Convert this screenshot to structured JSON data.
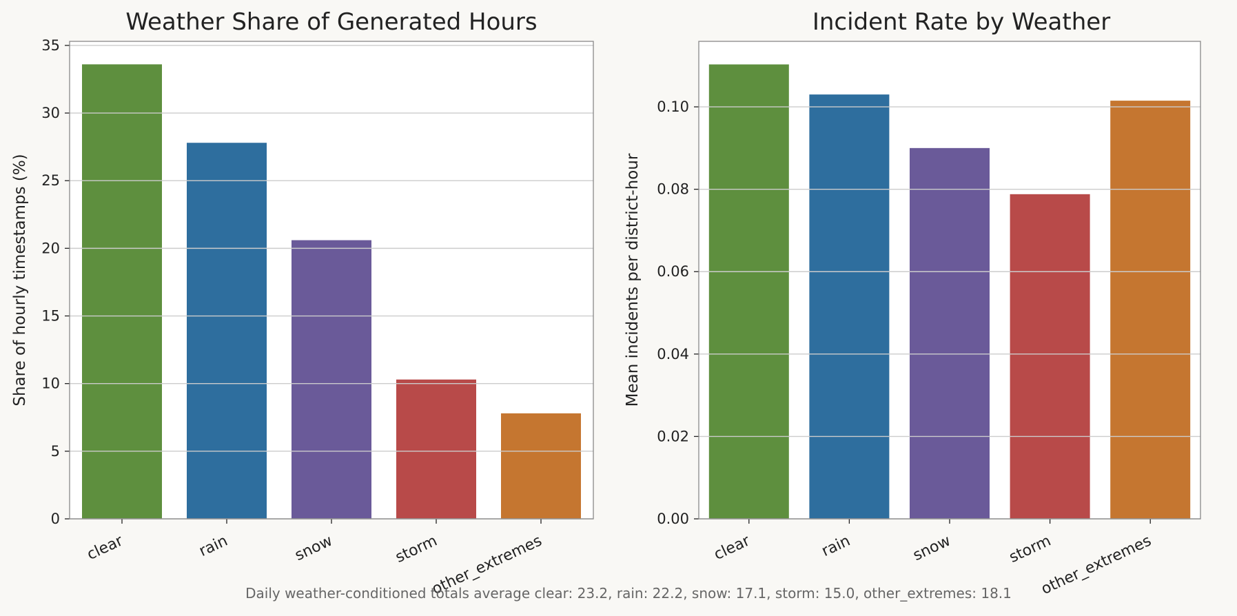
{
  "footnote": "Daily weather-conditioned totals average clear: 23.2, rain: 22.2, snow: 17.1, storm: 15.0, other_extremes: 18.1",
  "colors": {
    "clear": "#5e8f3e",
    "rain": "#2e6e9e",
    "snow": "#6a5a99",
    "storm": "#b84a49",
    "other_extremes": "#c57630",
    "grid": "#cccccc",
    "spine": "#888888",
    "text": "#222222",
    "footnote": "#666666",
    "background": "#f9f8f5",
    "plot_background": "#ffffff"
  },
  "chart_data": [
    {
      "type": "bar",
      "title": "Weather Share of Generated Hours",
      "xlabel": "",
      "ylabel": "Share of hourly timestamps (%)",
      "categories": [
        "clear",
        "rain",
        "snow",
        "storm",
        "other_extremes"
      ],
      "values": [
        33.6,
        27.8,
        20.6,
        10.3,
        7.8
      ],
      "ylim": [
        0,
        35.3
      ],
      "yticks": [
        0,
        5,
        10,
        15,
        20,
        25,
        30,
        35
      ],
      "ytick_labels": [
        "0",
        "5",
        "10",
        "15",
        "20",
        "25",
        "30",
        "35"
      ],
      "grid": true,
      "legend": "none"
    },
    {
      "type": "bar",
      "title": "Incident Rate by Weather",
      "xlabel": "",
      "ylabel": "Mean incidents per district-hour",
      "categories": [
        "clear",
        "rain",
        "snow",
        "storm",
        "other_extremes"
      ],
      "values": [
        0.1103,
        0.103,
        0.09,
        0.0788,
        0.1015
      ],
      "ylim": [
        0,
        0.1159
      ],
      "yticks": [
        0,
        0.02,
        0.04,
        0.06,
        0.08,
        0.1
      ],
      "ytick_labels": [
        "0.00",
        "0.02",
        "0.04",
        "0.06",
        "0.08",
        "0.10"
      ],
      "grid": true,
      "legend": "none"
    }
  ]
}
